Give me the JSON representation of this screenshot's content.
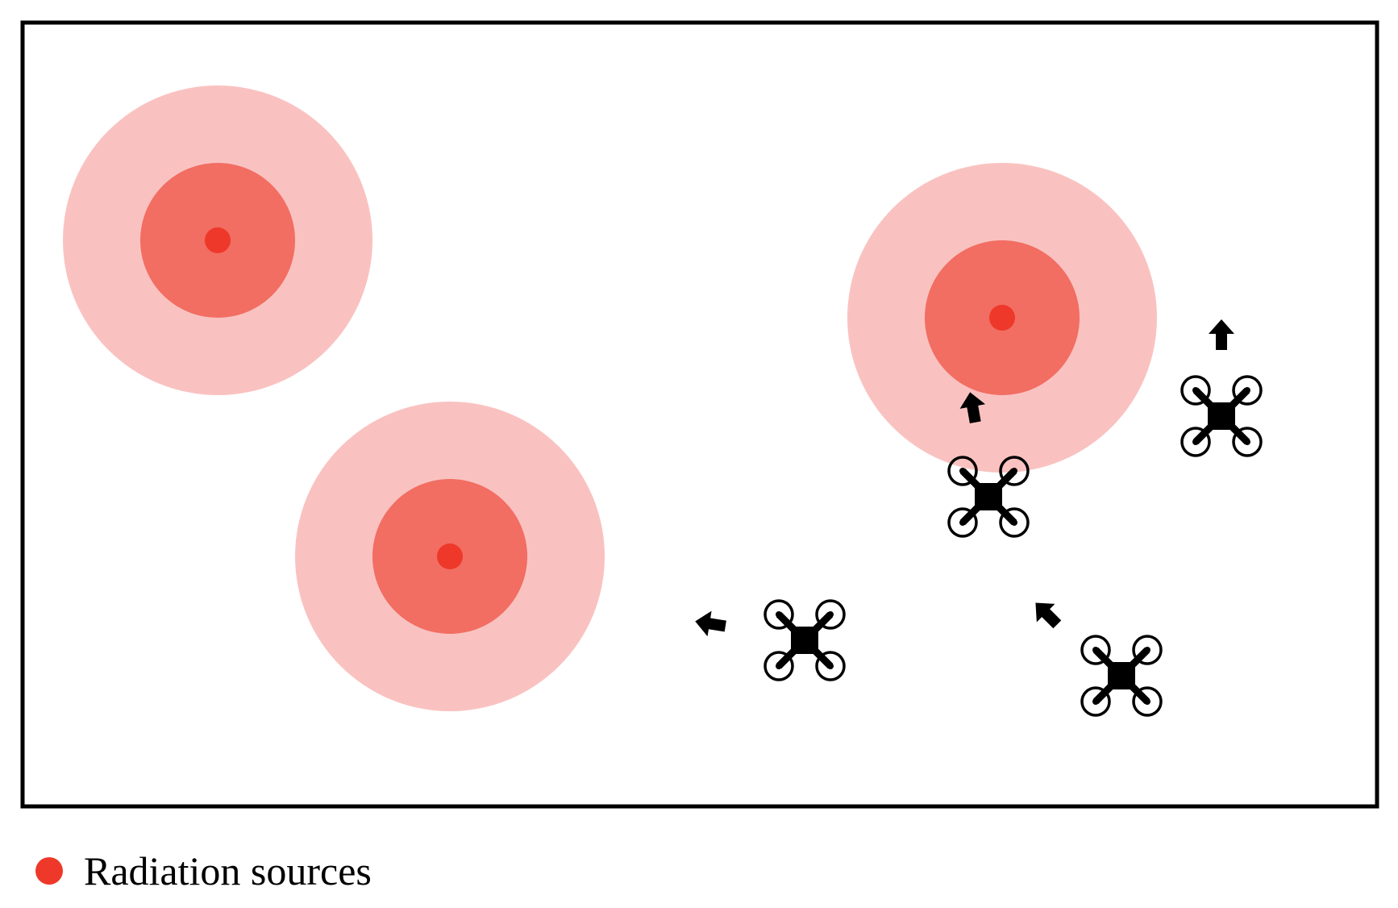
{
  "colors": {
    "frame": "#000000",
    "outer_zone": "#f9c2c0",
    "inner_zone": "#f26d62",
    "source": "#ee3829",
    "drone": "#000000",
    "arrow": "#000000"
  },
  "icons": {
    "drone": "quadcopter-drone-icon",
    "arrow": "direction-arrow-icon",
    "source": "radiation-source-dot"
  },
  "legend": {
    "label": "Radiation sources"
  }
}
